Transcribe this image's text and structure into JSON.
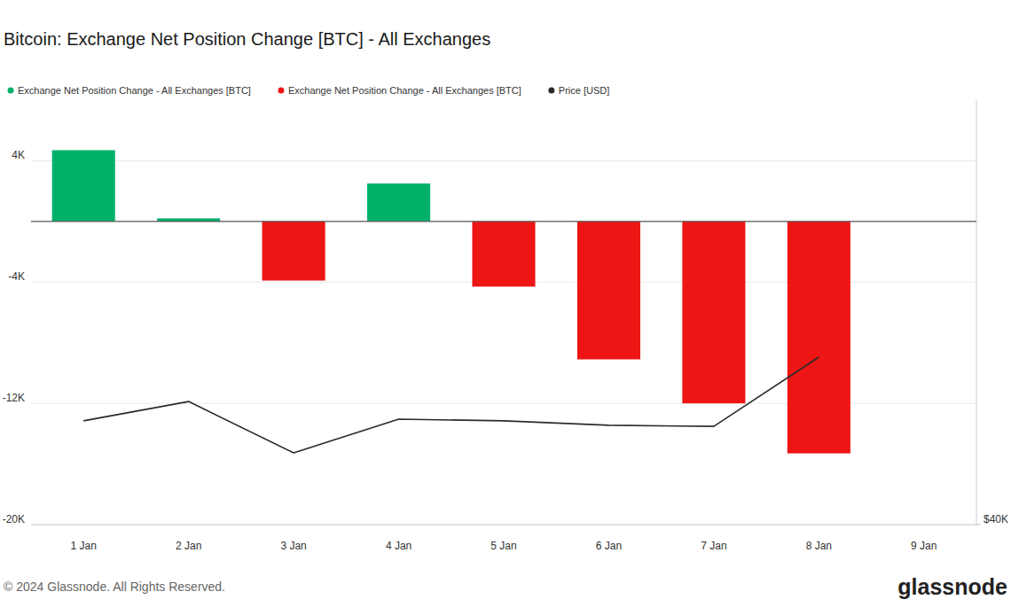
{
  "chart_data": {
    "type": "bar",
    "title": "Bitcoin: Exchange Net Position Change [BTC] - All Exchanges",
    "copyright": "© 2024 Glassnode. All Rights Reserved.",
    "logo": "glassnode",
    "categories": [
      "1 Jan",
      "2 Jan",
      "3 Jan",
      "4 Jan",
      "5 Jan",
      "6 Jan",
      "7 Jan",
      "8 Jan",
      "9 Jan"
    ],
    "series": [
      {
        "name": "Exchange Net Position Change - All Exchanges [BTC]",
        "color": "#01b169",
        "type": "bar",
        "values": [
          4700,
          200,
          null,
          2500,
          null,
          null,
          null,
          null,
          null
        ]
      },
      {
        "name": "Exchange Net Position Change - All Exchanges [BTC]",
        "color": "#ee1515",
        "type": "bar",
        "values": [
          null,
          null,
          -3900,
          null,
          -4300,
          -9100,
          -12000,
          -15300,
          null
        ]
      },
      {
        "name": "Price [USD]",
        "color": "#2b2b2b",
        "type": "line",
        "axis": "y2",
        "values": [
          44890,
          45800,
          43380,
          44970,
          44890,
          44680,
          44630,
          47890,
          null
        ]
      }
    ],
    "ylim": [
      -20000,
      8000
    ],
    "yticks": [
      {
        "value": 4000,
        "label": "4K"
      },
      {
        "value": -4000,
        "label": "-4K"
      },
      {
        "value": -12000,
        "label": "-12K"
      },
      {
        "value": -20000,
        "label": "-20K"
      }
    ],
    "y2lim": [
      40000,
      60000
    ],
    "y2ticks": [
      {
        "value": 40000,
        "label": "$40K"
      }
    ],
    "grid": true,
    "legend": "top-left"
  }
}
